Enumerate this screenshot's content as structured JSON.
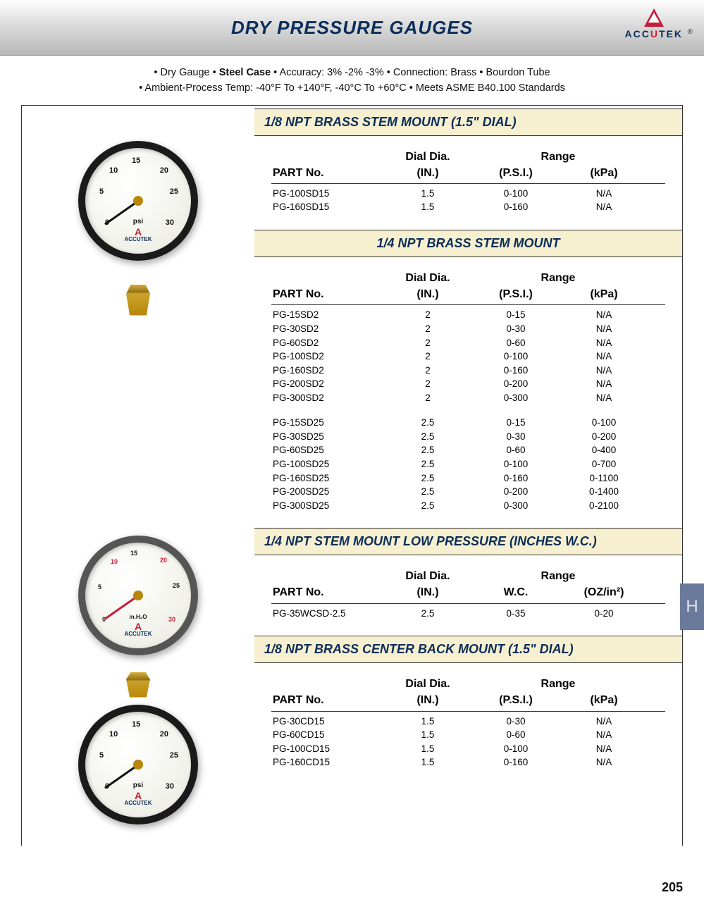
{
  "header": {
    "title": "DRY PRESSURE GAUGES",
    "logo_text_blue": "ACC",
    "logo_text_red": "U",
    "logo_text_blue2": "TEK"
  },
  "spec_line1": "• Dry Gauge • Steel Case • Accuracy: 3% -2% -3% • Connection: Brass • Bourdon Tube",
  "spec_line2": "• Ambient-Process Temp: -40°F To +140°F,  -40°C To +60°C • Meets ASME B40.100 Standards",
  "sections": [
    {
      "title": "1/8 NPT BRASS STEM MOUNT (1.5\" DIAL)",
      "center": false,
      "head_dial": "Dial Dia.",
      "head_range": "Range",
      "cols": [
        "PART No.",
        "(IN.)",
        "(P.S.I.)",
        "(kPa)"
      ],
      "rows": [
        [
          "PG-100SD15",
          "1.5",
          "0-100",
          "N/A"
        ],
        [
          "PG-160SD15",
          "1.5",
          "0-160",
          "N/A"
        ]
      ]
    },
    {
      "title": "1/4 NPT BRASS STEM MOUNT",
      "center": true,
      "head_dial": "Dial Dia.",
      "head_range": "Range",
      "cols": [
        "PART No.",
        "(IN.)",
        "(P.S.I.)",
        "(kPa)"
      ],
      "rows": [
        [
          "PG-15SD2",
          "2",
          "0-15",
          "N/A"
        ],
        [
          "PG-30SD2",
          "2",
          "0-30",
          "N/A"
        ],
        [
          "PG-60SD2",
          "2",
          "0-60",
          "N/A"
        ],
        [
          "PG-100SD2",
          "2",
          "0-100",
          "N/A"
        ],
        [
          "PG-160SD2",
          "2",
          "0-160",
          "N/A"
        ],
        [
          "PG-200SD2",
          "2",
          "0-200",
          "N/A"
        ],
        [
          "PG-300SD2",
          "2",
          "0-300",
          "N/A"
        ]
      ],
      "rows2": [
        [
          "PG-15SD25",
          "2.5",
          "0-15",
          "0-100"
        ],
        [
          "PG-30SD25",
          "2.5",
          "0-30",
          "0-200"
        ],
        [
          "PG-60SD25",
          "2.5",
          "0-60",
          "0-400"
        ],
        [
          "PG-100SD25",
          "2.5",
          "0-100",
          "0-700"
        ],
        [
          "PG-160SD25",
          "2.5",
          "0-160",
          "0-1100"
        ],
        [
          "PG-200SD25",
          "2.5",
          "0-200",
          "0-1400"
        ],
        [
          "PG-300SD25",
          "2.5",
          "0-300",
          "0-2100"
        ]
      ]
    },
    {
      "title": "1/4 NPT STEM MOUNT LOW PRESSURE (INCHES W.C.)",
      "center": false,
      "head_dial": "Dial Dia.",
      "head_range": "Range",
      "cols": [
        "PART No.",
        "(IN.)",
        "W.C.",
        "(OZ/in²)"
      ],
      "rows": [
        [
          "PG-35WCSD-2.5",
          "2.5",
          "0-35",
          "0-20"
        ]
      ]
    },
    {
      "title": "1/8 NPT BRASS CENTER BACK MOUNT (1.5\" DIAL)",
      "center": false,
      "head_dial": "Dial Dia.",
      "head_range": "Range",
      "cols": [
        "PART No.",
        "(IN.)",
        "(P.S.I.)",
        "(kPa)"
      ],
      "rows": [
        [
          "PG-30CD15",
          "1.5",
          "0-30",
          "N/A"
        ],
        [
          "PG-60CD15",
          "1.5",
          "0-60",
          "N/A"
        ],
        [
          "PG-100CD15",
          "1.5",
          "0-100",
          "N/A"
        ],
        [
          "PG-160CD15",
          "1.5",
          "0-160",
          "N/A"
        ]
      ]
    }
  ],
  "gauge_ticks": {
    "psi30": [
      "0",
      "5",
      "10",
      "15",
      "20",
      "25",
      "30"
    ]
  },
  "side_tab": "H",
  "page_number": "205",
  "colors": {
    "header_title": "#0a2d5a",
    "section_bg": "#f7f0d0",
    "tab_bg": "#6a7a9a",
    "red": "#c41e3a"
  }
}
